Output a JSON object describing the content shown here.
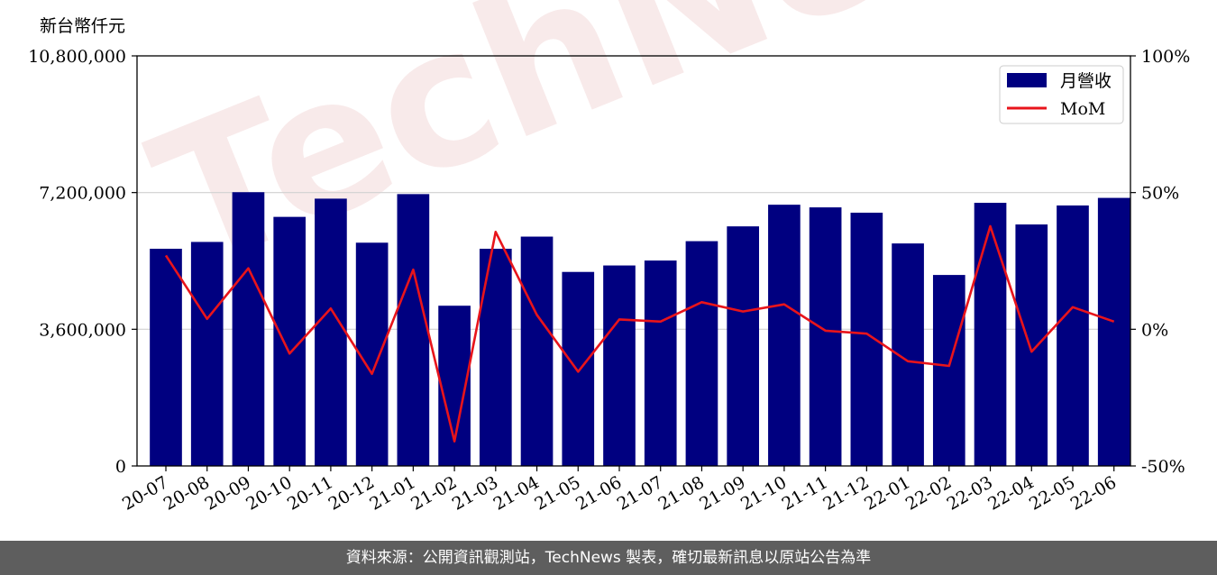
{
  "unit_label": "新台幣仟元",
  "footer_text": "資料來源：公開資訊觀測站，TechNews 製表，確切最新訊息以原站公告為準",
  "watermark": "TechNews",
  "colors": {
    "bar": "#000080",
    "line": "#e8141b",
    "grid": "#d0d0d0"
  },
  "chart_data": {
    "type": "bar",
    "categories": [
      "20-07",
      "20-08",
      "20-09",
      "20-10",
      "20-11",
      "20-12",
      "21-01",
      "21-02",
      "21-03",
      "21-04",
      "21-05",
      "21-06",
      "21-07",
      "21-08",
      "21-09",
      "21-10",
      "21-11",
      "21-12",
      "22-01",
      "22-02",
      "22-03",
      "22-04",
      "22-05",
      "22-06"
    ],
    "series": [
      {
        "name": "月營收",
        "type": "bar",
        "axis": "left",
        "values": [
          5720000,
          5900000,
          7210000,
          6560000,
          7040000,
          5880000,
          7160000,
          4220000,
          5720000,
          6040000,
          5110000,
          5280000,
          5410000,
          5920000,
          6310000,
          6880000,
          6810000,
          6670000,
          5860000,
          5030000,
          6930000,
          6360000,
          6860000,
          7060000
        ]
      },
      {
        "name": "MoM",
        "type": "line",
        "axis": "right",
        "values": [
          27.0,
          3.8,
          22.3,
          -8.9,
          7.6,
          -16.3,
          21.8,
          -41.0,
          35.6,
          5.3,
          -15.5,
          3.6,
          2.8,
          9.9,
          6.5,
          9.1,
          -0.5,
          -1.6,
          -11.7,
          -13.4,
          37.7,
          -8.2,
          8.1,
          2.8
        ]
      }
    ],
    "y_left": {
      "ticks": [
        0,
        3600000,
        7200000,
        10800000
      ],
      "tick_labels": [
        "0",
        "3,600,000",
        "7,200,000",
        "10,800,000"
      ],
      "ylim": [
        0,
        10800000
      ]
    },
    "y_right": {
      "ticks": [
        -50,
        0,
        50,
        100
      ],
      "tick_labels": [
        "-50%",
        "0%",
        "50%",
        "100%"
      ],
      "ylim": [
        -50,
        100
      ]
    },
    "grid": "horizontal",
    "legend": "top-right"
  }
}
